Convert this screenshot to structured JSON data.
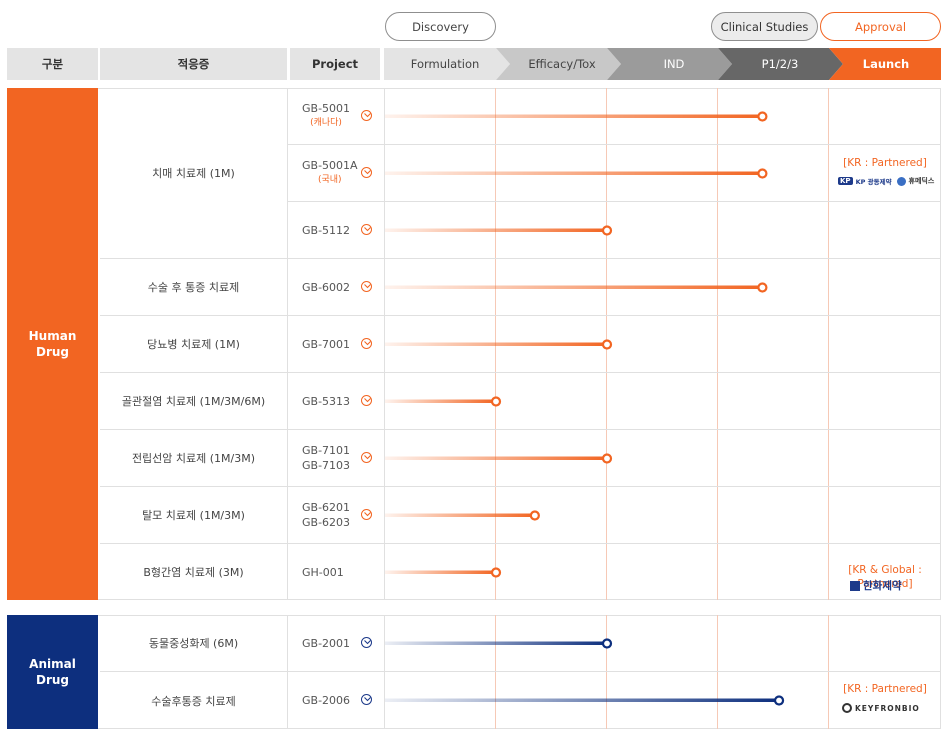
{
  "phase_groups": {
    "discovery": "Discovery",
    "clinical": "Clinical Studies",
    "approval": "Approval"
  },
  "header": {
    "category": "구분",
    "indication": "적응증",
    "project": "Project"
  },
  "stages": [
    "Formulation",
    "Efficacy/Tox",
    "IND",
    "P1/2/3",
    "Launch"
  ],
  "categories": {
    "human": "Human\nDrug",
    "animal": "Animal\nDrug"
  },
  "human_groups": [
    {
      "indication": "치매 치료제 (1M)"
    },
    {
      "indication": "수술 후 통증 치료제"
    },
    {
      "indication": "당뇨병 치료제 (1M)"
    },
    {
      "indication": "골관절염 치료제 (1M/3M/6M)"
    },
    {
      "indication": "전립선암 치료제 (1M/3M)"
    },
    {
      "indication": "탈모 치료제 (1M/3M)"
    },
    {
      "indication": "B형간염 치료제 (3M)"
    }
  ],
  "animal_groups": [
    {
      "indication": "동물중성화제 (6M)"
    },
    {
      "indication": "수술후통증 치료제"
    }
  ],
  "human_rows": [
    {
      "codes": [
        "GB-5001"
      ],
      "sub": "(캐나다)",
      "progress_stage": 3.4
    },
    {
      "codes": [
        "GB-5001A"
      ],
      "sub": "(국내)",
      "progress_stage": 3.4
    },
    {
      "codes": [
        "GB-5112"
      ],
      "sub": "",
      "progress_stage": 2.0
    },
    {
      "codes": [
        "GB-6002"
      ],
      "sub": "",
      "progress_stage": 3.4
    },
    {
      "codes": [
        "GB-7001"
      ],
      "sub": "",
      "progress_stage": 2.0
    },
    {
      "codes": [
        "GB-5313"
      ],
      "sub": "",
      "progress_stage": 1.0
    },
    {
      "codes": [
        "GB-7101",
        "GB-7103"
      ],
      "sub": "",
      "progress_stage": 2.0
    },
    {
      "codes": [
        "GB-6201",
        "GB-6203"
      ],
      "sub": "",
      "progress_stage": 1.35
    },
    {
      "codes": [
        "GH-001"
      ],
      "sub": "",
      "progress_stage": 1.0
    }
  ],
  "animal_rows": [
    {
      "codes": [
        "GB-2001"
      ],
      "sub": "",
      "progress_stage": 2.0
    },
    {
      "codes": [
        "GB-2006"
      ],
      "sub": "",
      "progress_stage": 3.55
    }
  ],
  "partners": {
    "gb5001a": {
      "label": "[KR : Partnered]",
      "logo1": "KP 광동제약",
      "logo2": "휴메딕스"
    },
    "gh001": {
      "label": "[KR & Global :\nPartnered]",
      "logo": "한화제약"
    },
    "gb2006": {
      "label": "[KR : Partnered]",
      "logo": "KEYFRONBIO"
    }
  },
  "colors": {
    "orange": "#f26522",
    "navy": "#0d2f7e",
    "header_gray": "#e4e4e4"
  },
  "icons": [
    "chevron-down-circle-icon"
  ]
}
